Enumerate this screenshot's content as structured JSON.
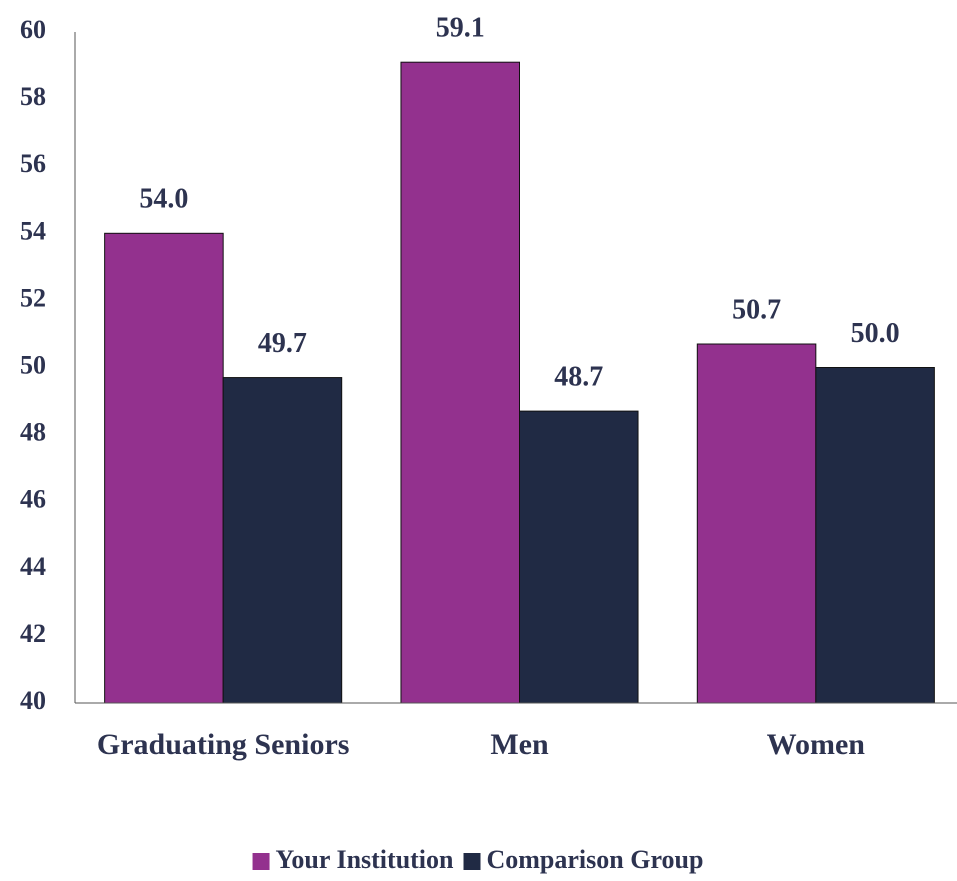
{
  "chart_data": {
    "type": "bar",
    "categories": [
      "Graduating Seniors",
      "Men",
      "Women"
    ],
    "series": [
      {
        "name": "Your Institution",
        "color": "#93318e",
        "values": [
          54.0,
          59.1,
          50.7
        ],
        "value_labels": [
          "54.0",
          "59.1",
          "50.7"
        ]
      },
      {
        "name": "Comparison Group",
        "color": "#202a44",
        "values": [
          49.7,
          48.7,
          50.0
        ],
        "value_labels": [
          "49.7",
          "48.7",
          "50.0"
        ]
      }
    ],
    "ylim": [
      40,
      60
    ],
    "yticks": [
      40,
      42,
      44,
      46,
      48,
      50,
      52,
      54,
      56,
      58,
      60
    ],
    "grid": false,
    "legend": "bottom"
  }
}
